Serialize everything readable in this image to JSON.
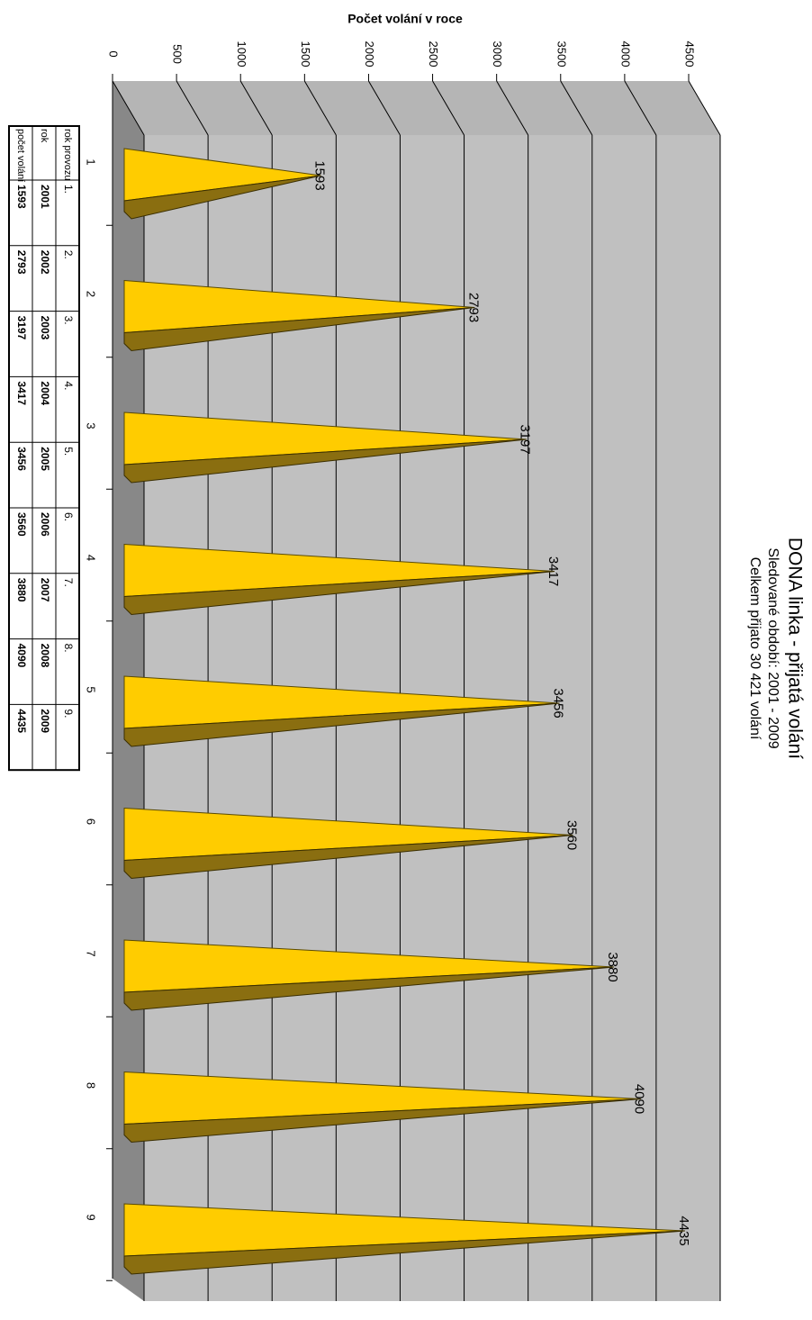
{
  "chart_data": {
    "type": "bar",
    "title": "DONA linka - přijatá volání",
    "subtitle": [
      "Sledované období: 2001 - 2009",
      "Celkem přijato 30 421 volání"
    ],
    "y_label": "Počet volání v roce",
    "categories": [
      "1",
      "2",
      "3",
      "4",
      "5",
      "6",
      "7",
      "8",
      "9"
    ],
    "values": [
      1593,
      2793,
      3197,
      3417,
      3456,
      3560,
      3880,
      4090,
      4435
    ],
    "color": "#ffcc00",
    "ylim": [
      0,
      4500
    ],
    "yticks": [
      0,
      500,
      1000,
      1500,
      2000,
      2500,
      3000,
      3500,
      4000,
      4500
    ],
    "grid": true,
    "data_table": {
      "row_labels": [
        "rok provozu",
        "rok",
        "počet volání"
      ],
      "rok_provozu": [
        "1.",
        "2.",
        "3.",
        "4.",
        "5.",
        "6.",
        "7.",
        "8.",
        "9."
      ],
      "rok": [
        2001,
        2002,
        2003,
        2004,
        2005,
        2006,
        2007,
        2008,
        2009
      ]
    }
  }
}
